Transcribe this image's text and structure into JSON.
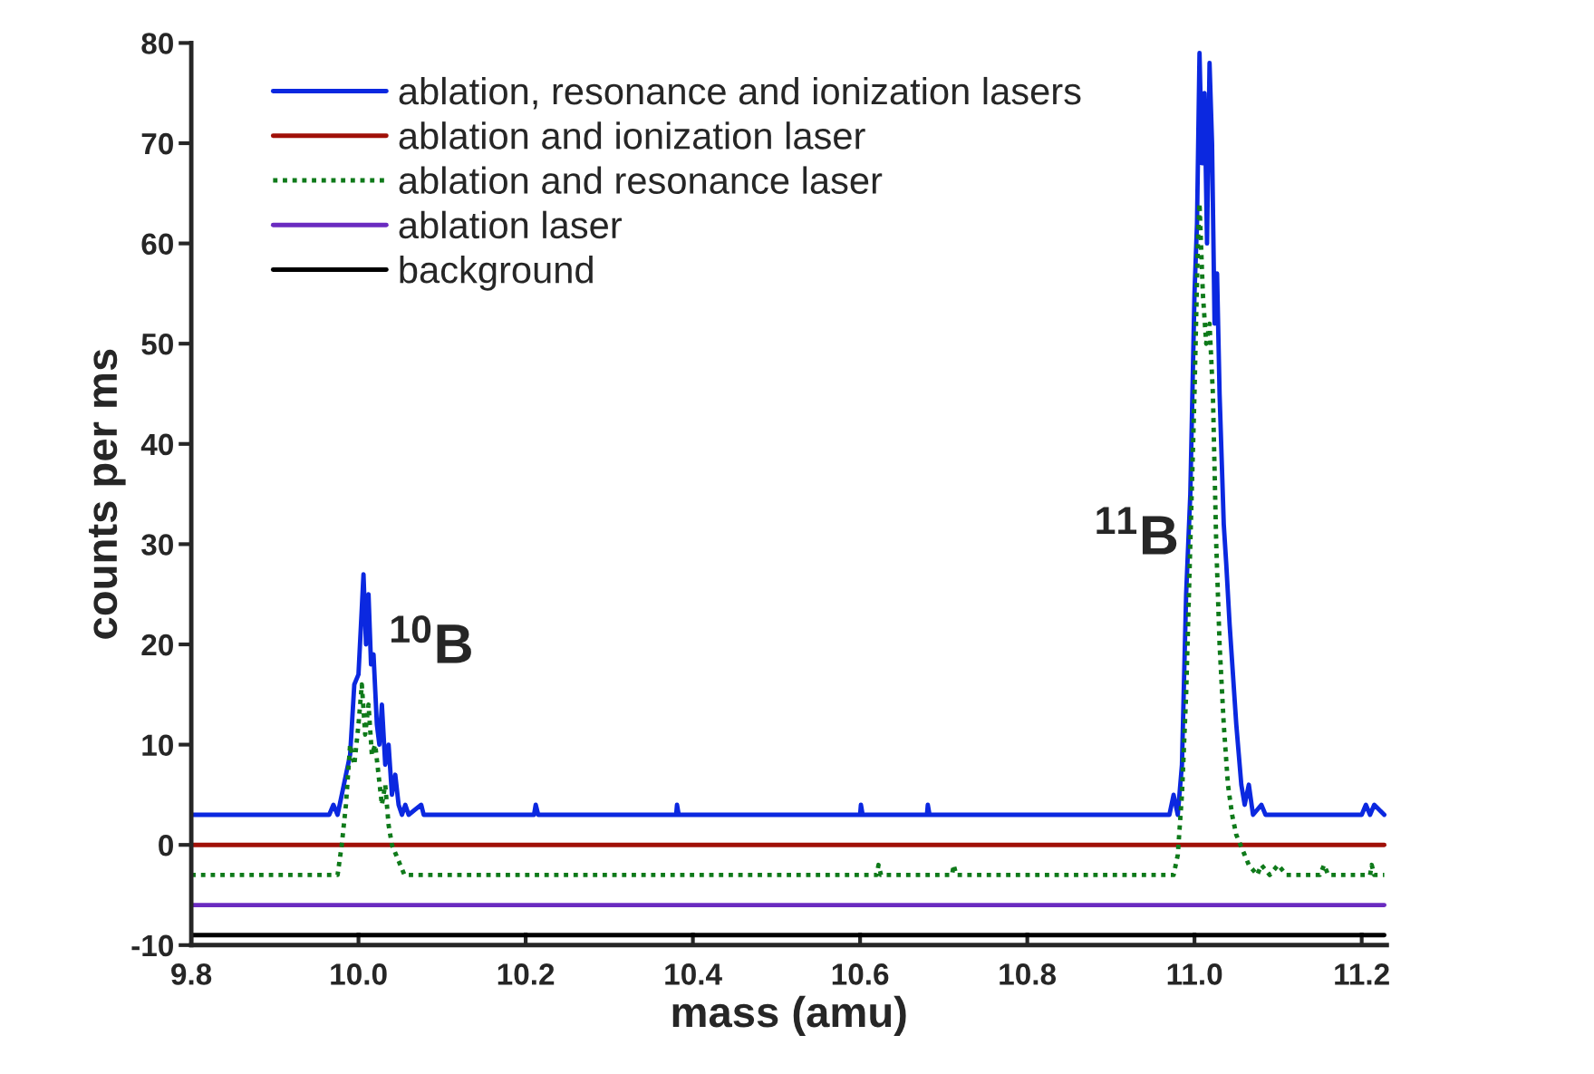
{
  "chart_data": {
    "type": "line",
    "xlabel": "mass (amu)",
    "ylabel": "counts per ms",
    "xlim": [
      9.8,
      11.23
    ],
    "ylim": [
      -10,
      80
    ],
    "xticks": [
      9.8,
      {
        "value": 10.0,
        "label": "10.0"
      },
      10.2,
      10.4,
      10.6,
      10.8,
      {
        "value": 11.0,
        "label": "11.0"
      },
      11.2
    ],
    "yticks": [
      -10,
      0,
      10,
      20,
      30,
      40,
      50,
      60,
      70,
      80
    ],
    "grid": false,
    "legend": "top left",
    "marker": "none",
    "annotations": [
      "$^{10}$B",
      "$^{11}$B"
    ],
    "series": [
      {
        "name": "ablation, resonance and ionization lasers",
        "color": "#0b28e0",
        "line_style": "solid",
        "x": [
          9.8,
          9.965,
          9.97,
          9.975,
          9.98,
          9.985,
          9.99,
          9.995,
          10.0,
          10.003,
          10.006,
          10.009,
          10.012,
          10.015,
          10.018,
          10.022,
          10.025,
          10.028,
          10.032,
          10.036,
          10.04,
          10.044,
          10.048,
          10.052,
          10.056,
          10.06,
          10.075,
          10.078,
          10.21,
          10.212,
          10.215,
          10.38,
          10.381,
          10.383,
          10.6,
          10.601,
          10.603,
          10.68,
          10.681,
          10.683,
          10.97,
          10.975,
          10.98,
          10.985,
          10.99,
          10.995,
          11.0,
          11.003,
          11.006,
          11.009,
          11.012,
          11.015,
          11.018,
          11.021,
          11.024,
          11.027,
          11.03,
          11.035,
          11.038,
          11.042,
          11.046,
          11.05,
          11.053,
          11.056,
          11.06,
          11.065,
          11.07,
          11.08,
          11.085,
          11.2,
          11.205,
          11.21,
          11.215,
          11.227
        ],
        "values": [
          3,
          3,
          4,
          3,
          5,
          7,
          9,
          16,
          17,
          22,
          27,
          20,
          25,
          18,
          19,
          12,
          10,
          14,
          8,
          10,
          5,
          7,
          4,
          3,
          4,
          3,
          4,
          3,
          3,
          4,
          3,
          3,
          4,
          3,
          3,
          4,
          3,
          3,
          4,
          3,
          3,
          5,
          3,
          8,
          25,
          35,
          55,
          62,
          79,
          68,
          75,
          60,
          78,
          70,
          52,
          57,
          45,
          32,
          28,
          22,
          17,
          12,
          9,
          6,
          4,
          6,
          3,
          4,
          3,
          3,
          4,
          3,
          4,
          3
        ]
      },
      {
        "name": "ablation and ionization laser",
        "color": "#a01008",
        "line_style": "solid",
        "x": [
          9.8,
          11.227
        ],
        "values": [
          0,
          0
        ]
      },
      {
        "name": "ablation and resonance laser",
        "color": "#0f7a1a",
        "line_style": "dotted",
        "x": [
          9.8,
          9.975,
          9.98,
          9.985,
          9.99,
          9.995,
          10.0,
          10.004,
          10.008,
          10.012,
          10.016,
          10.02,
          10.024,
          10.028,
          10.032,
          10.036,
          10.04,
          10.045,
          10.05,
          10.055,
          10.62,
          10.622,
          10.625,
          10.71,
          10.712,
          10.715,
          10.975,
          10.98,
          10.985,
          10.99,
          10.995,
          11.0,
          11.004,
          11.006,
          11.01,
          11.014,
          11.018,
          11.022,
          11.026,
          11.03,
          11.035,
          11.04,
          11.045,
          11.05,
          11.055,
          11.06,
          11.065,
          11.075,
          11.08,
          11.09,
          11.1,
          11.11,
          11.15,
          11.155,
          11.16,
          11.21,
          11.212,
          11.215,
          11.227
        ],
        "values": [
          -3,
          -3,
          0,
          4,
          10,
          8,
          12,
          16,
          11,
          14,
          9,
          10,
          7,
          4,
          6,
          2,
          0,
          -1,
          -2,
          -3,
          -3,
          -2,
          -3,
          -3,
          -2,
          -3,
          -3,
          -1,
          5,
          15,
          30,
          45,
          60,
          64,
          55,
          50,
          52,
          45,
          30,
          20,
          12,
          6,
          3,
          1,
          0,
          -1,
          -2,
          -3,
          -2,
          -3,
          -2,
          -3,
          -3,
          -2,
          -3,
          -3,
          -2,
          -3,
          -3
        ]
      },
      {
        "name": "ablation laser",
        "color": "#6a2bc0",
        "line_style": "solid",
        "x": [
          9.8,
          11.227
        ],
        "values": [
          -6,
          -6
        ]
      },
      {
        "name": "background",
        "color": "#000000",
        "line_style": "solid",
        "x": [
          9.8,
          11.227
        ],
        "values": [
          -9,
          -9
        ]
      }
    ]
  }
}
